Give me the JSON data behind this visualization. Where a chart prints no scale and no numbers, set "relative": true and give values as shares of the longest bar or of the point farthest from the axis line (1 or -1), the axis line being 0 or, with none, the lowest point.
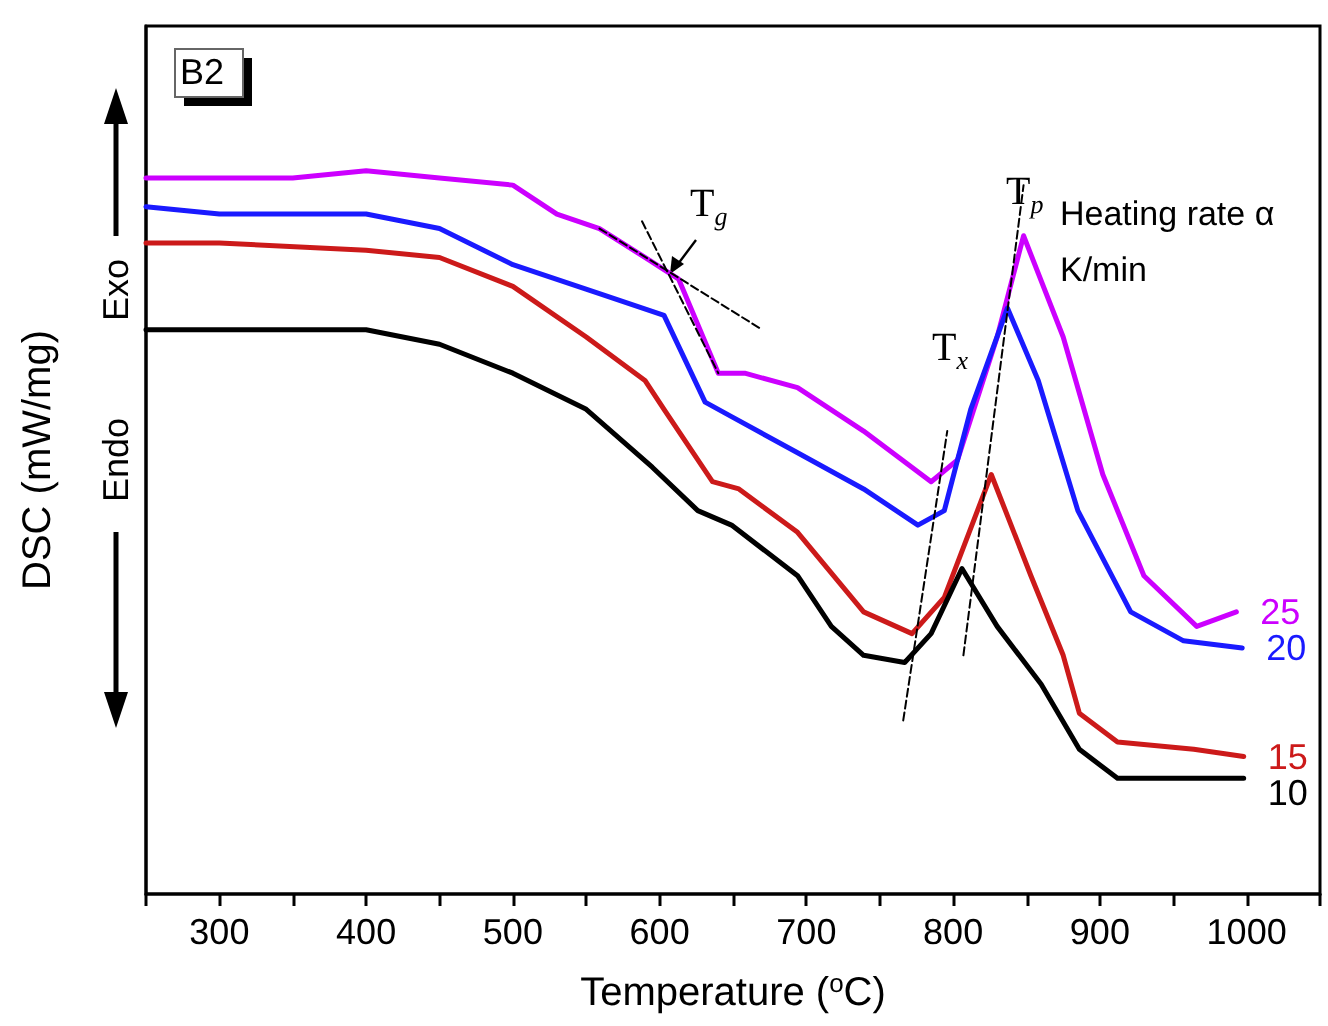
{
  "chart_data": {
    "type": "line",
    "relative": true,
    "xlabel": "Temperature ($^{o}$C)",
    "ylabel": "DSC (mW/mg)",
    "xlim": [
      250,
      1050
    ],
    "xticks": [
      {
        "value": 250,
        "label": null
      },
      300,
      {
        "value": 350,
        "label": null
      },
      400,
      {
        "value": 450,
        "label": null
      },
      500,
      {
        "value": 550,
        "label": null
      },
      600,
      {
        "value": 650,
        "label": null
      },
      700,
      {
        "value": 750,
        "label": null
      },
      800,
      {
        "value": 850,
        "label": null
      },
      900,
      {
        "value": 950,
        "label": null
      },
      1000,
      {
        "value": 1050,
        "label": null
      }
    ],
    "marker": "none",
    "grid": false,
    "legend": false,
    "annotations": [
      "B2",
      "Heating rate α K/min",
      "Exo",
      "Endo",
      "T$_{g}$",
      "T$_{x}$",
      "T$_{p}$"
    ],
    "series": [
      {
        "name": "25",
        "color": "#cc00ff",
        "x": [
          250,
          300,
          350,
          400,
          450,
          500,
          530,
          559,
          590,
          613,
          640,
          658,
          694,
          739,
          785,
          803,
          830,
          848,
          875,
          902,
          930,
          966,
          993
        ],
        "values": [
          0.99,
          0.99,
          0.99,
          1.0,
          0.99,
          0.98,
          0.94,
          0.92,
          0.88,
          0.85,
          0.72,
          0.72,
          0.7,
          0.64,
          0.57,
          0.6,
          0.77,
          0.91,
          0.77,
          0.58,
          0.44,
          0.37,
          0.39
        ]
      },
      {
        "name": "20",
        "color": "#1a1aff",
        "x": [
          250,
          300,
          400,
          450,
          500,
          559,
          603,
          631,
          649,
          694,
          739,
          776,
          794,
          812,
          837,
          858,
          885,
          921,
          957,
          997
        ],
        "values": [
          0.95,
          0.94,
          0.94,
          0.92,
          0.87,
          0.83,
          0.8,
          0.68,
          0.66,
          0.61,
          0.56,
          0.51,
          0.53,
          0.67,
          0.81,
          0.71,
          0.53,
          0.39,
          0.35,
          0.34
        ]
      },
      {
        "name": "15",
        "color": "#cc1a1a",
        "x": [
          250,
          300,
          400,
          450,
          500,
          550,
          590,
          603,
          636,
          654,
          694,
          739,
          772,
          794,
          826,
          853,
          875,
          886,
          912,
          964,
          998
        ],
        "values": [
          0.9,
          0.9,
          0.89,
          0.88,
          0.84,
          0.77,
          0.71,
          0.67,
          0.57,
          0.56,
          0.5,
          0.39,
          0.36,
          0.41,
          0.58,
          0.44,
          0.33,
          0.25,
          0.21,
          0.2,
          0.19
        ]
      },
      {
        "name": "10",
        "color": "#000000",
        "x": [
          250,
          400,
          450,
          500,
          550,
          595,
          626,
          649,
          694,
          717,
          739,
          767,
          785,
          806,
          830,
          860,
          886,
          912,
          964,
          998
        ],
        "values": [
          0.78,
          0.78,
          0.76,
          0.72,
          0.67,
          0.59,
          0.53,
          0.51,
          0.44,
          0.37,
          0.33,
          0.32,
          0.36,
          0.45,
          0.37,
          0.29,
          0.2,
          0.16,
          0.16,
          0.16
        ]
      },
      {
        "color": "#000000",
        "line_style": "dashed",
        "x": [
          588,
          640
        ],
        "values": [
          0.93,
          0.72
        ]
      },
      {
        "color": "#000000",
        "line_style": "dashed",
        "x": [
          559,
          670
        ],
        "values": [
          0.92,
          0.78
        ]
      },
      {
        "color": "#000000",
        "line_style": "dashed",
        "x": [
          766,
          796
        ],
        "values": [
          0.24,
          0.64
        ]
      },
      {
        "color": "#000000",
        "line_style": "dashed",
        "x": [
          807,
          848
        ],
        "values": [
          0.33,
          0.98
        ]
      }
    ]
  }
}
